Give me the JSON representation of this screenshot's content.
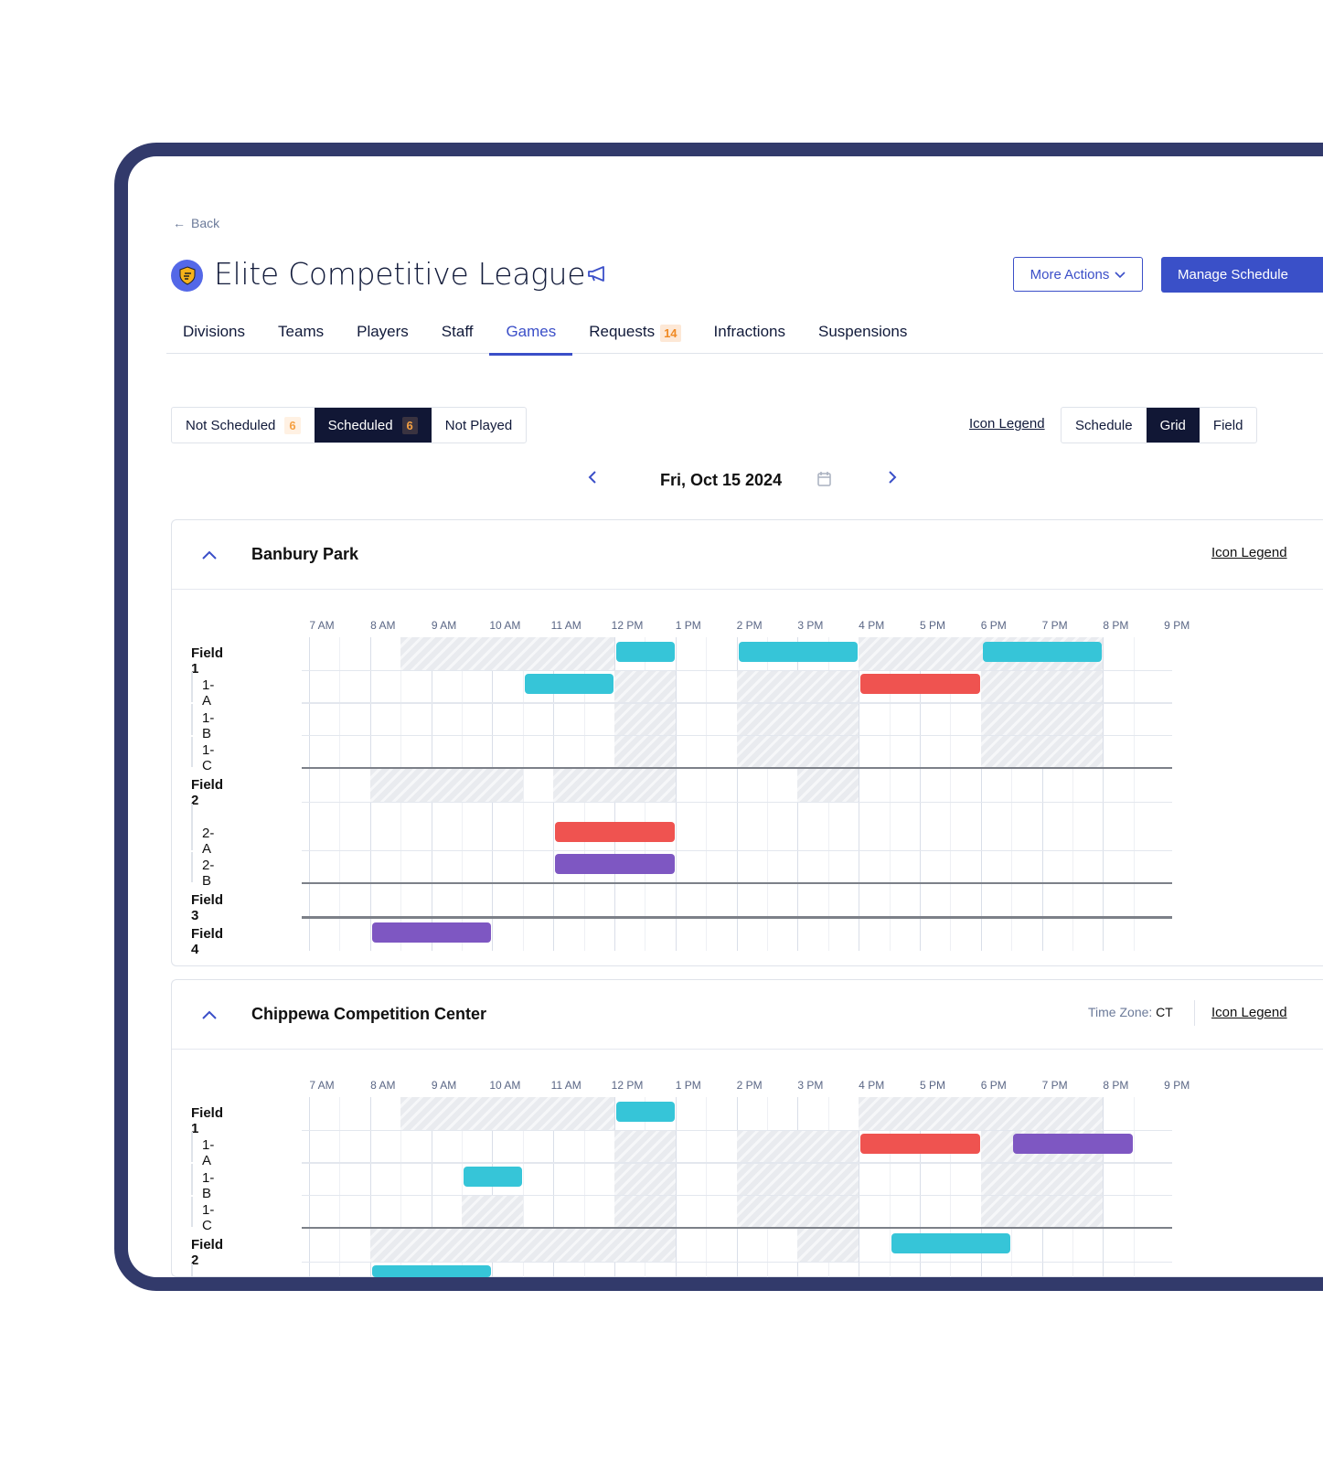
{
  "back_label": "Back",
  "league_title": "Elite Competitive League",
  "header_buttons": {
    "more_actions": "More Actions",
    "manage_schedule": "Manage Schedule"
  },
  "tabs": [
    {
      "label": "Divisions"
    },
    {
      "label": "Teams"
    },
    {
      "label": "Players"
    },
    {
      "label": "Staff"
    },
    {
      "label": "Games",
      "active": true
    },
    {
      "label": "Requests",
      "badge": "14"
    },
    {
      "label": "Infractions"
    },
    {
      "label": "Suspensions"
    }
  ],
  "status_filter": [
    {
      "label": "Not Scheduled",
      "count": "6"
    },
    {
      "label": "Scheduled",
      "count": "6",
      "active": true
    },
    {
      "label": "Not Played"
    }
  ],
  "icon_legend_label": "Icon Legend",
  "view_toggle": [
    {
      "label": "Schedule"
    },
    {
      "label": "Grid",
      "active": true
    },
    {
      "label": "Field"
    }
  ],
  "date_label": "Fri, Oct 15 2024",
  "colors": {
    "accent": "#3b4fc8",
    "cyan": "#36c5d8",
    "red": "#ef5350",
    "purple": "#7e57c2",
    "dark": "#111735",
    "frame": "#323a6b"
  },
  "hours": [
    "7 AM",
    "8 AM",
    "9 AM",
    "10 AM",
    "11 AM",
    "12 PM",
    "1 PM",
    "2 PM",
    "3 PM",
    "4 PM",
    "5 PM",
    "6 PM",
    "7 PM",
    "8 PM",
    "9 PM"
  ],
  "venues": [
    {
      "name": "Banbury Park",
      "icon_legend": "Icon Legend",
      "rows": [
        {
          "label": "Field 1",
          "type": "field",
          "unavailable": [
            [
              8.5,
              12
            ],
            [
              16,
              20
            ]
          ],
          "games": [
            [
              12,
              13,
              "cyan"
            ],
            [
              14,
              16,
              "cyan"
            ],
            [
              18,
              20,
              "cyan"
            ]
          ]
        },
        {
          "label": "1-A",
          "type": "sub",
          "unavailable": [
            [
              12,
              13
            ],
            [
              14,
              16
            ],
            [
              18,
              20
            ]
          ],
          "games": [
            [
              10.5,
              12,
              "cyan"
            ],
            [
              16,
              18,
              "red"
            ]
          ]
        },
        {
          "label": "1-B",
          "type": "sub",
          "unavailable": [
            [
              12,
              13
            ],
            [
              14,
              16
            ],
            [
              18,
              20
            ]
          ],
          "games": []
        },
        {
          "label": "1-C",
          "type": "sub",
          "unavailable": [
            [
              12,
              13
            ],
            [
              14,
              16
            ],
            [
              18,
              20
            ]
          ],
          "games": []
        },
        {
          "label": "Field 2",
          "type": "field",
          "unavailable": [
            [
              8,
              10.5
            ],
            [
              11,
              13
            ],
            [
              15,
              16
            ]
          ],
          "games": []
        },
        {
          "label": "2-A",
          "type": "sub",
          "tall": true,
          "unavailable": [],
          "games": [
            [
              11,
              13,
              "red"
            ]
          ]
        },
        {
          "label": "2-B",
          "type": "sub",
          "unavailable": [],
          "games": [
            [
              11,
              13,
              "purple"
            ]
          ]
        },
        {
          "label": "Field 3",
          "type": "field",
          "unavailable": [],
          "games": []
        },
        {
          "label": "Field 4",
          "type": "field",
          "unavailable": [],
          "games": [
            [
              8,
              10,
              "purple"
            ]
          ]
        }
      ]
    },
    {
      "name": "Chippewa Competition Center",
      "time_zone_label": "Time Zone:",
      "time_zone": "CT",
      "icon_legend": "Icon Legend",
      "rows": [
        {
          "label": "Field 1",
          "type": "field",
          "unavailable": [
            [
              8.5,
              12
            ],
            [
              16,
              20
            ]
          ],
          "games": [
            [
              12,
              13,
              "cyan"
            ]
          ]
        },
        {
          "label": "1-A",
          "type": "sub",
          "unavailable": [
            [
              12,
              13
            ],
            [
              14,
              16
            ],
            [
              18,
              20
            ]
          ],
          "games": [
            [
              16,
              18,
              "red"
            ],
            [
              18.5,
              20.5,
              "purple"
            ]
          ]
        },
        {
          "label": "1-B",
          "type": "sub",
          "unavailable": [
            [
              12,
              13
            ],
            [
              14,
              16
            ],
            [
              18,
              20
            ]
          ],
          "games": [
            [
              9.5,
              10.5,
              "cyan"
            ]
          ]
        },
        {
          "label": "1-C",
          "type": "sub",
          "unavailable": [
            [
              9.5,
              10.5
            ],
            [
              12,
              13
            ],
            [
              14,
              16
            ],
            [
              18,
              20
            ]
          ],
          "games": []
        },
        {
          "label": "Field 2",
          "type": "field",
          "unavailable": [
            [
              8,
              13
            ],
            [
              15,
              16
            ]
          ],
          "games": [
            [
              16.5,
              18.5,
              "cyan"
            ]
          ]
        },
        {
          "label": "",
          "type": "sub",
          "unavailable": [],
          "games": [
            [
              8,
              10,
              "cyan"
            ]
          ]
        }
      ]
    }
  ]
}
